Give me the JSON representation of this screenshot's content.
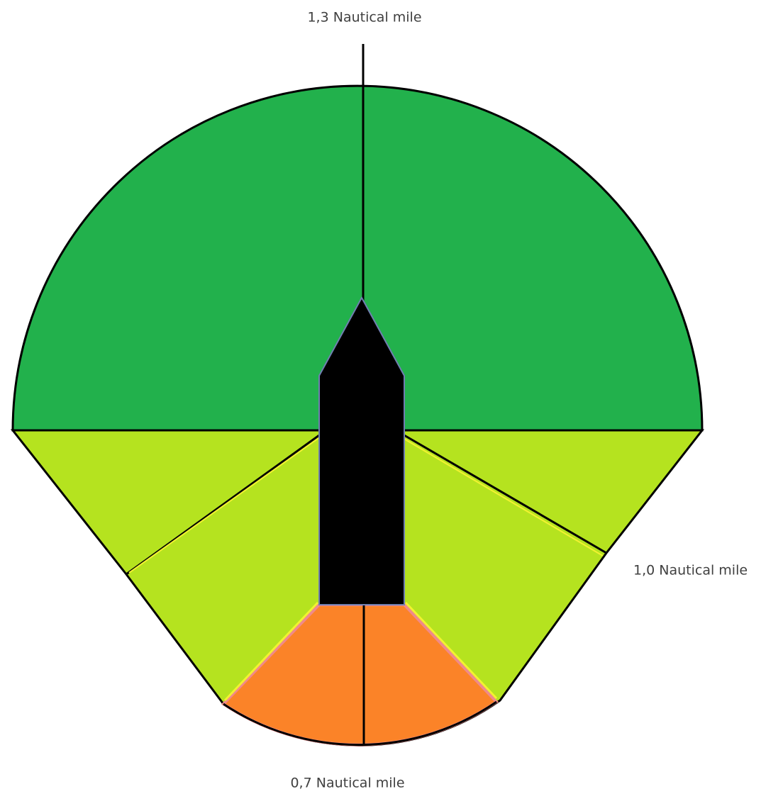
{
  "labels": {
    "top": "1,3 Nautical mile",
    "right": "1,0 Nautical mile",
    "bottom": "0,7 Nautical mile"
  }
}
